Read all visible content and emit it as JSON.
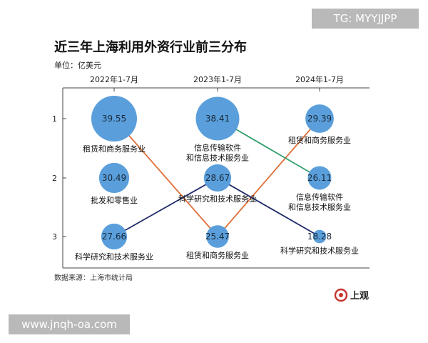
{
  "header": {
    "title": "近三年上海利用外资行业前三分布",
    "unit": "单位：亿美元"
  },
  "footer": {
    "source": "数据来源：上海市统计局",
    "logo_text": "上观"
  },
  "watermarks": {
    "top": "TG: MYYJJPP",
    "bottom": "www.jnqh-oa.com"
  },
  "colors": {
    "bubble": "#5a9fdb",
    "line_rental": "#e0703a",
    "line_it": "#2e9e6a",
    "line_science": "#1f2a6b",
    "logo_red": "#c8332e"
  },
  "chart_data": {
    "type": "scatter",
    "x": [
      "2022年1-7月",
      "2023年1-7月",
      "2024年1-7月"
    ],
    "y_ticks": [
      "1",
      "2",
      "3"
    ],
    "bubbles": [
      {
        "x": "2022年1-7月",
        "rank": 1,
        "value": "39.55",
        "label": [
          "租赁和商务服务业"
        ]
      },
      {
        "x": "2022年1-7月",
        "rank": 2,
        "value": "30.49",
        "label": [
          "批发和零售业"
        ]
      },
      {
        "x": "2022年1-7月",
        "rank": 3,
        "value": "27.66",
        "label": [
          "科学研究和技术服务业"
        ]
      },
      {
        "x": "2023年1-7月",
        "rank": 1,
        "value": "38.41",
        "label": [
          "信息传输软件",
          "和信息技术服务业"
        ]
      },
      {
        "x": "2023年1-7月",
        "rank": 2,
        "value": "28.67",
        "label": [
          "科学研究和技术服务业"
        ]
      },
      {
        "x": "2023年1-7月",
        "rank": 3,
        "value": "25.47",
        "label": [
          "租赁和商务服务业"
        ]
      },
      {
        "x": "2024年1-7月",
        "rank": 1,
        "value": "29.39",
        "label": [
          "租赁和商务服务业"
        ]
      },
      {
        "x": "2024年1-7月",
        "rank": 2,
        "value": "26.11",
        "label": [
          "信息传输软件",
          "和信息技术服务业"
        ]
      },
      {
        "x": "2024年1-7月",
        "rank": 3,
        "value": "18.28",
        "label": [
          "科学研究和技术服务业"
        ]
      }
    ],
    "series": [
      {
        "name": "租赁和商务服务业",
        "ranks": [
          1,
          3,
          1
        ],
        "color": "#e0703a"
      },
      {
        "name": "信息传输软件和信息技术服务业",
        "ranks": [
          null,
          1,
          2
        ],
        "color": "#2e9e6a"
      },
      {
        "name": "科学研究和技术服务业",
        "ranks": [
          3,
          2,
          3
        ],
        "color": "#1f2a6b"
      }
    ]
  }
}
